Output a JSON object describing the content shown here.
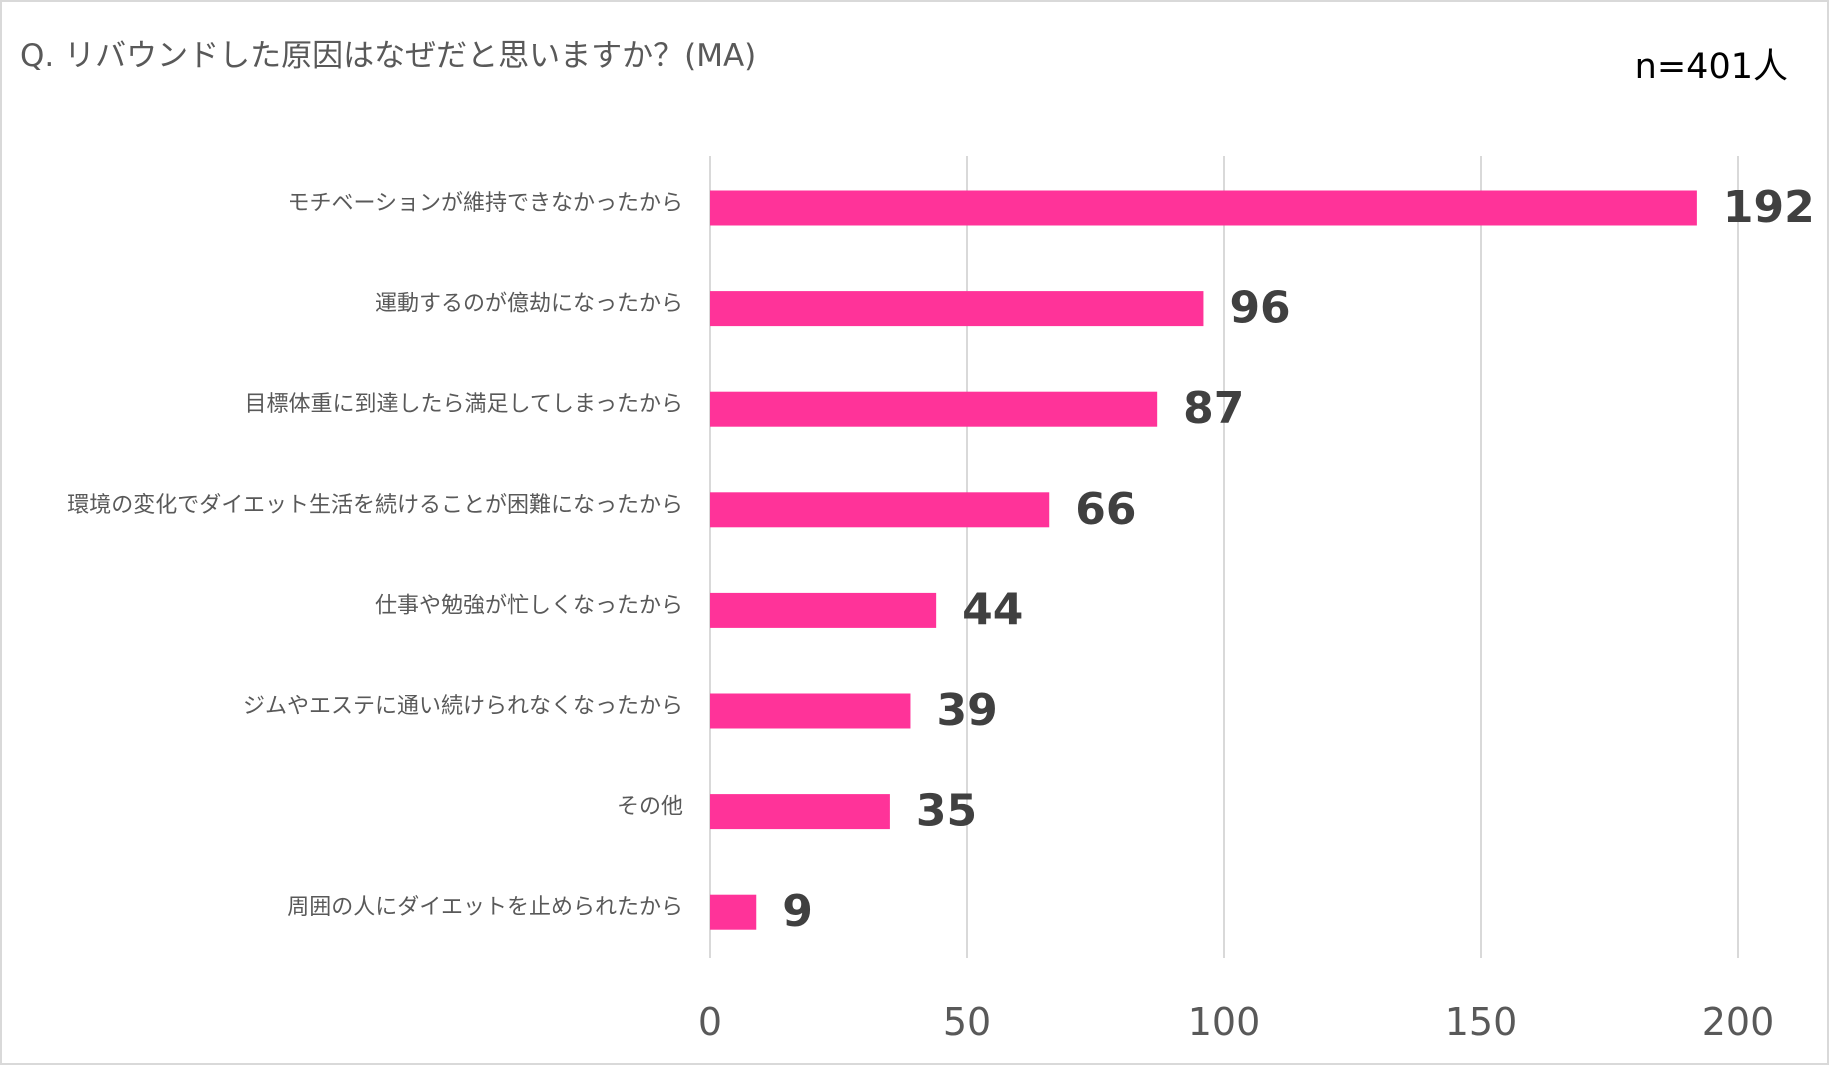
{
  "title": "Q. リバウンドした原因はなぜだと思いますか？(MA)",
  "sample_size": "n=401人",
  "chart_data": {
    "type": "bar",
    "orientation": "horizontal",
    "title": "Q. リバウンドした原因はなぜだと思いますか？(MA)",
    "categories": [
      "モチベーションが維持できなかったから",
      "運動するのが億劫になったから",
      "目標体重に到達したら満足してしまったから",
      "環境の変化でダイエット生活を続けることが困難になったから",
      "仕事や勉強が忙しくなったから",
      "ジムやエステに通い続けられなくなったから",
      "その他",
      "周囲の人にダイエットを止められたから"
    ],
    "values": [
      192,
      96,
      87,
      66,
      44,
      39,
      35,
      9
    ],
    "xlim": [
      0,
      200
    ],
    "xticks": [
      0,
      50,
      100,
      150,
      200
    ],
    "grid": true,
    "legend": "none",
    "bar_color": "#ff3399",
    "data_labels": true
  }
}
